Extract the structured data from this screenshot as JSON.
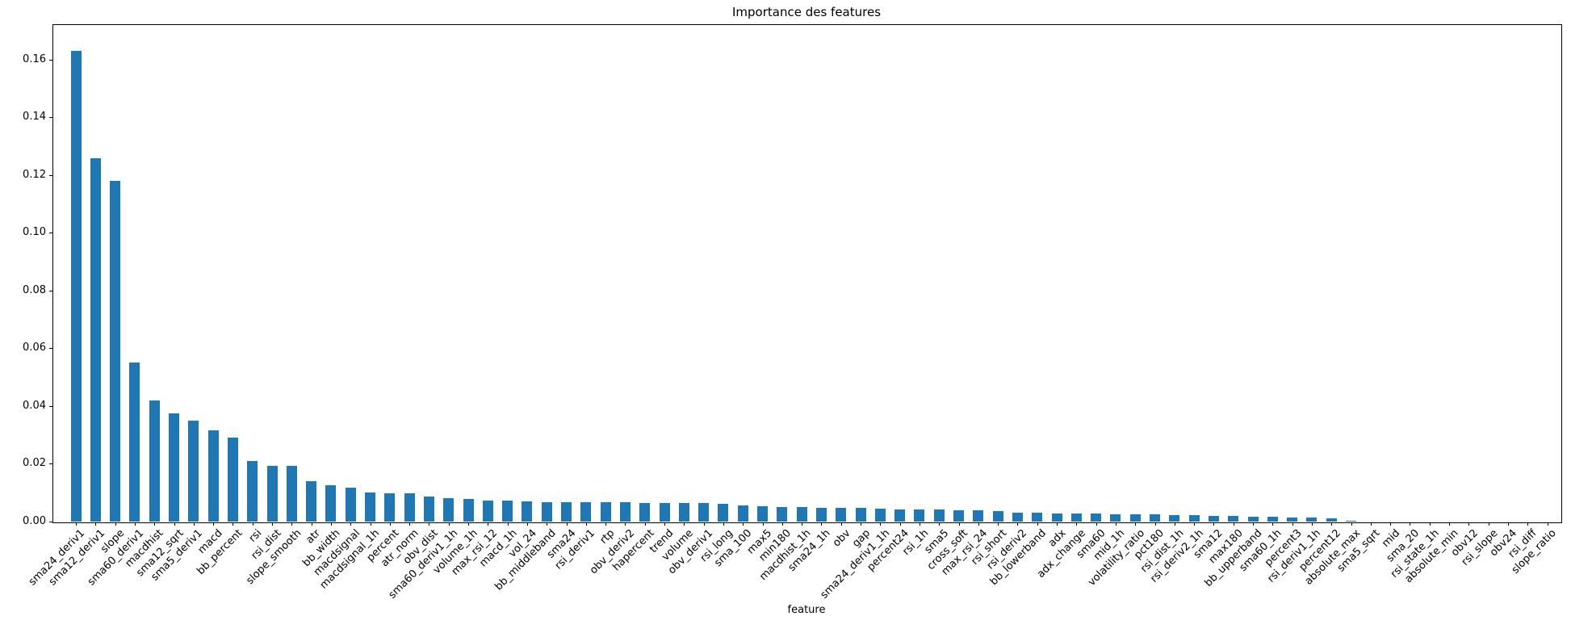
{
  "chart_data": {
    "type": "bar",
    "title": "Importance des features",
    "xlabel": "feature",
    "ylabel": "",
    "bar_color": "#1f77b4",
    "ylim": [
      0,
      0.1723
    ],
    "yticks": [
      "0.00",
      "0.02",
      "0.04",
      "0.06",
      "0.08",
      "0.10",
      "0.12",
      "0.14",
      "0.16"
    ],
    "grid": false,
    "legend": "none",
    "categories": [
      "sma24_deriv1",
      "sma12_deriv1",
      "slope",
      "sma60_deriv1",
      "macdhist",
      "sma12_sqrt",
      "sma5_deriv1",
      "macd",
      "bb_percent",
      "rsi",
      "rsi_dist",
      "slope_smooth",
      "atr",
      "bb_width",
      "macdsignal",
      "macdsignal_1h",
      "percent",
      "atr_norm",
      "obv_dist",
      "sma60_deriv1_1h",
      "volume_1h",
      "max_rsi_12",
      "macd_1h",
      "vol_24",
      "bb_middleband",
      "sma24",
      "rsi_deriv1",
      "rtp",
      "obv_deriv2",
      "hapercent",
      "trend",
      "volume",
      "obv_deriv1",
      "rsi_long",
      "sma_100",
      "max5",
      "min180",
      "macdhist_1h",
      "sma24_1h",
      "obv",
      "gap",
      "sma24_deriv1_1h",
      "percent24",
      "rsi_1h",
      "sma5",
      "cross_soft",
      "max_rsi_24",
      "rsi_short",
      "rsi_deriv2",
      "bb_lowerband",
      "adx",
      "adx_change",
      "sma60",
      "mid_1h",
      "volatility_ratio",
      "pct180",
      "rsi_dist_1h",
      "rsi_deriv2_1h",
      "sma12",
      "max180",
      "bb_upperband",
      "sma60_1h",
      "percent3",
      "rsi_deriv1_1h",
      "percent12",
      "absolute_max",
      "sma5_sqrt",
      "mid",
      "sma_20",
      "rsi_state_1h",
      "absolute_min",
      "obv12",
      "rsi_slope",
      "obv24",
      "rsi_diff",
      "slope_ratio"
    ],
    "values": [
      0.163,
      0.126,
      0.118,
      0.055,
      0.042,
      0.0375,
      0.035,
      0.0315,
      0.029,
      0.021,
      0.0193,
      0.0193,
      0.014,
      0.0125,
      0.0118,
      0.01,
      0.0099,
      0.0099,
      0.0086,
      0.008,
      0.0077,
      0.0072,
      0.0072,
      0.0069,
      0.0068,
      0.0067,
      0.0066,
      0.0066,
      0.0066,
      0.0065,
      0.0065,
      0.0064,
      0.0063,
      0.0062,
      0.0056,
      0.0052,
      0.005,
      0.0049,
      0.0047,
      0.0047,
      0.0047,
      0.0046,
      0.0043,
      0.0042,
      0.0041,
      0.0038,
      0.0038,
      0.0035,
      0.003,
      0.003,
      0.0028,
      0.0028,
      0.0027,
      0.0026,
      0.0024,
      0.0024,
      0.0022,
      0.0022,
      0.0019,
      0.0019,
      0.0017,
      0.0016,
      0.0013,
      0.0013,
      0.0012,
      0.0004,
      0.0001,
      0,
      0,
      0,
      0,
      0,
      0,
      0,
      0,
      0
    ]
  }
}
